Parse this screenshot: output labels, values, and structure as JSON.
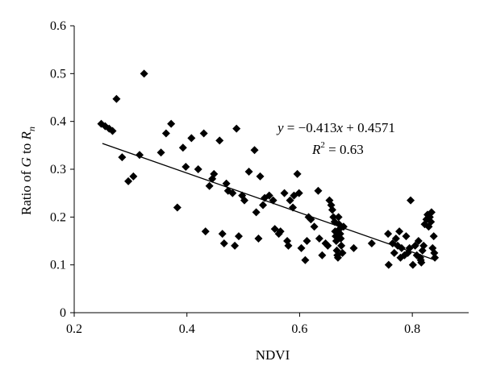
{
  "chart_data": {
    "type": "scatter",
    "title": "",
    "xlabel": "NDVI",
    "ylabel": {
      "prefix": "Ratio of ",
      "G": "G",
      "mid": " to ",
      "R": "R",
      "sub": "n"
    },
    "xlim": [
      0.2,
      0.9
    ],
    "ylim": [
      0,
      0.6
    ],
    "xticks": [
      0.2,
      0.4,
      0.6,
      0.8
    ],
    "xtick_labels": [
      "0.2",
      "0.4",
      "0.6",
      "0.8"
    ],
    "yticks": [
      0,
      0.1,
      0.2,
      0.3,
      0.4,
      0.5,
      0.6
    ],
    "ytick_labels": [
      "0",
      "0.1",
      "0.2",
      "0.3",
      "0.4",
      "0.5",
      "0.6"
    ],
    "grid": false,
    "legend": "none",
    "marker": "diamond",
    "marker_color": "#000000",
    "trendline": {
      "slope": -0.413,
      "intercept": 0.4571,
      "x_range": [
        0.25,
        0.84
      ],
      "color": "#000000"
    },
    "annotations": {
      "equation": {
        "y": "y",
        "eq": " = −0.413",
        "x": "x",
        "rest": " + 0.4571"
      },
      "r2": {
        "R": "R",
        "sup": "2",
        "rest": " = 0.63"
      }
    },
    "series": [
      {
        "points": [
          [
            0.248,
            0.395
          ],
          [
            0.255,
            0.39
          ],
          [
            0.262,
            0.385
          ],
          [
            0.268,
            0.38
          ],
          [
            0.275,
            0.447
          ],
          [
            0.285,
            0.325
          ],
          [
            0.296,
            0.275
          ],
          [
            0.305,
            0.285
          ],
          [
            0.316,
            0.33
          ],
          [
            0.324,
            0.5
          ],
          [
            0.354,
            0.335
          ],
          [
            0.363,
            0.375
          ],
          [
            0.372,
            0.395
          ],
          [
            0.383,
            0.22
          ],
          [
            0.393,
            0.345
          ],
          [
            0.398,
            0.305
          ],
          [
            0.408,
            0.365
          ],
          [
            0.42,
            0.3
          ],
          [
            0.43,
            0.375
          ],
          [
            0.433,
            0.17
          ],
          [
            0.44,
            0.265
          ],
          [
            0.445,
            0.28
          ],
          [
            0.448,
            0.29
          ],
          [
            0.458,
            0.36
          ],
          [
            0.463,
            0.165
          ],
          [
            0.466,
            0.145
          ],
          [
            0.47,
            0.27
          ],
          [
            0.473,
            0.255
          ],
          [
            0.481,
            0.25
          ],
          [
            0.485,
            0.14
          ],
          [
            0.488,
            0.385
          ],
          [
            0.492,
            0.16
          ],
          [
            0.498,
            0.245
          ],
          [
            0.502,
            0.235
          ],
          [
            0.51,
            0.295
          ],
          [
            0.52,
            0.34
          ],
          [
            0.523,
            0.21
          ],
          [
            0.527,
            0.155
          ],
          [
            0.53,
            0.285
          ],
          [
            0.535,
            0.225
          ],
          [
            0.538,
            0.24
          ],
          [
            0.546,
            0.245
          ],
          [
            0.553,
            0.235
          ],
          [
            0.556,
            0.175
          ],
          [
            0.563,
            0.165
          ],
          [
            0.566,
            0.17
          ],
          [
            0.573,
            0.25
          ],
          [
            0.578,
            0.15
          ],
          [
            0.58,
            0.14
          ],
          [
            0.583,
            0.235
          ],
          [
            0.588,
            0.22
          ],
          [
            0.59,
            0.245
          ],
          [
            0.596,
            0.29
          ],
          [
            0.599,
            0.25
          ],
          [
            0.603,
            0.135
          ],
          [
            0.61,
            0.11
          ],
          [
            0.613,
            0.15
          ],
          [
            0.616,
            0.2
          ],
          [
            0.62,
            0.195
          ],
          [
            0.626,
            0.18
          ],
          [
            0.633,
            0.255
          ],
          [
            0.635,
            0.155
          ],
          [
            0.64,
            0.12
          ],
          [
            0.646,
            0.145
          ],
          [
            0.65,
            0.14
          ],
          [
            0.653,
            0.235
          ],
          [
            0.656,
            0.225
          ],
          [
            0.658,
            0.215
          ],
          [
            0.66,
            0.2
          ],
          [
            0.662,
            0.19
          ],
          [
            0.663,
            0.17
          ],
          [
            0.664,
            0.16
          ],
          [
            0.665,
            0.15
          ],
          [
            0.666,
            0.13
          ],
          [
            0.667,
            0.12
          ],
          [
            0.668,
            0.115
          ],
          [
            0.669,
            0.2
          ],
          [
            0.67,
            0.185
          ],
          [
            0.671,
            0.175
          ],
          [
            0.672,
            0.165
          ],
          [
            0.673,
            0.155
          ],
          [
            0.674,
            0.14
          ],
          [
            0.676,
            0.125
          ],
          [
            0.678,
            0.18
          ],
          [
            0.696,
            0.135
          ],
          [
            0.728,
            0.145
          ],
          [
            0.757,
            0.165
          ],
          [
            0.758,
            0.1
          ],
          [
            0.765,
            0.145
          ],
          [
            0.768,
            0.125
          ],
          [
            0.771,
            0.155
          ],
          [
            0.774,
            0.14
          ],
          [
            0.777,
            0.17
          ],
          [
            0.779,
            0.115
          ],
          [
            0.781,
            0.135
          ],
          [
            0.786,
            0.12
          ],
          [
            0.789,
            0.16
          ],
          [
            0.792,
            0.125
          ],
          [
            0.795,
            0.135
          ],
          [
            0.797,
            0.235
          ],
          [
            0.801,
            0.1
          ],
          [
            0.805,
            0.14
          ],
          [
            0.808,
            0.12
          ],
          [
            0.811,
            0.15
          ],
          [
            0.814,
            0.115
          ],
          [
            0.815,
            0.11
          ],
          [
            0.816,
            0.105
          ],
          [
            0.818,
            0.13
          ],
          [
            0.82,
            0.14
          ],
          [
            0.822,
            0.185
          ],
          [
            0.825,
            0.195
          ],
          [
            0.827,
            0.205
          ],
          [
            0.829,
            0.18
          ],
          [
            0.831,
            0.2
          ],
          [
            0.833,
            0.19
          ],
          [
            0.834,
            0.21
          ],
          [
            0.836,
            0.135
          ],
          [
            0.838,
            0.16
          ],
          [
            0.839,
            0.125
          ],
          [
            0.84,
            0.115
          ]
        ]
      }
    ]
  }
}
